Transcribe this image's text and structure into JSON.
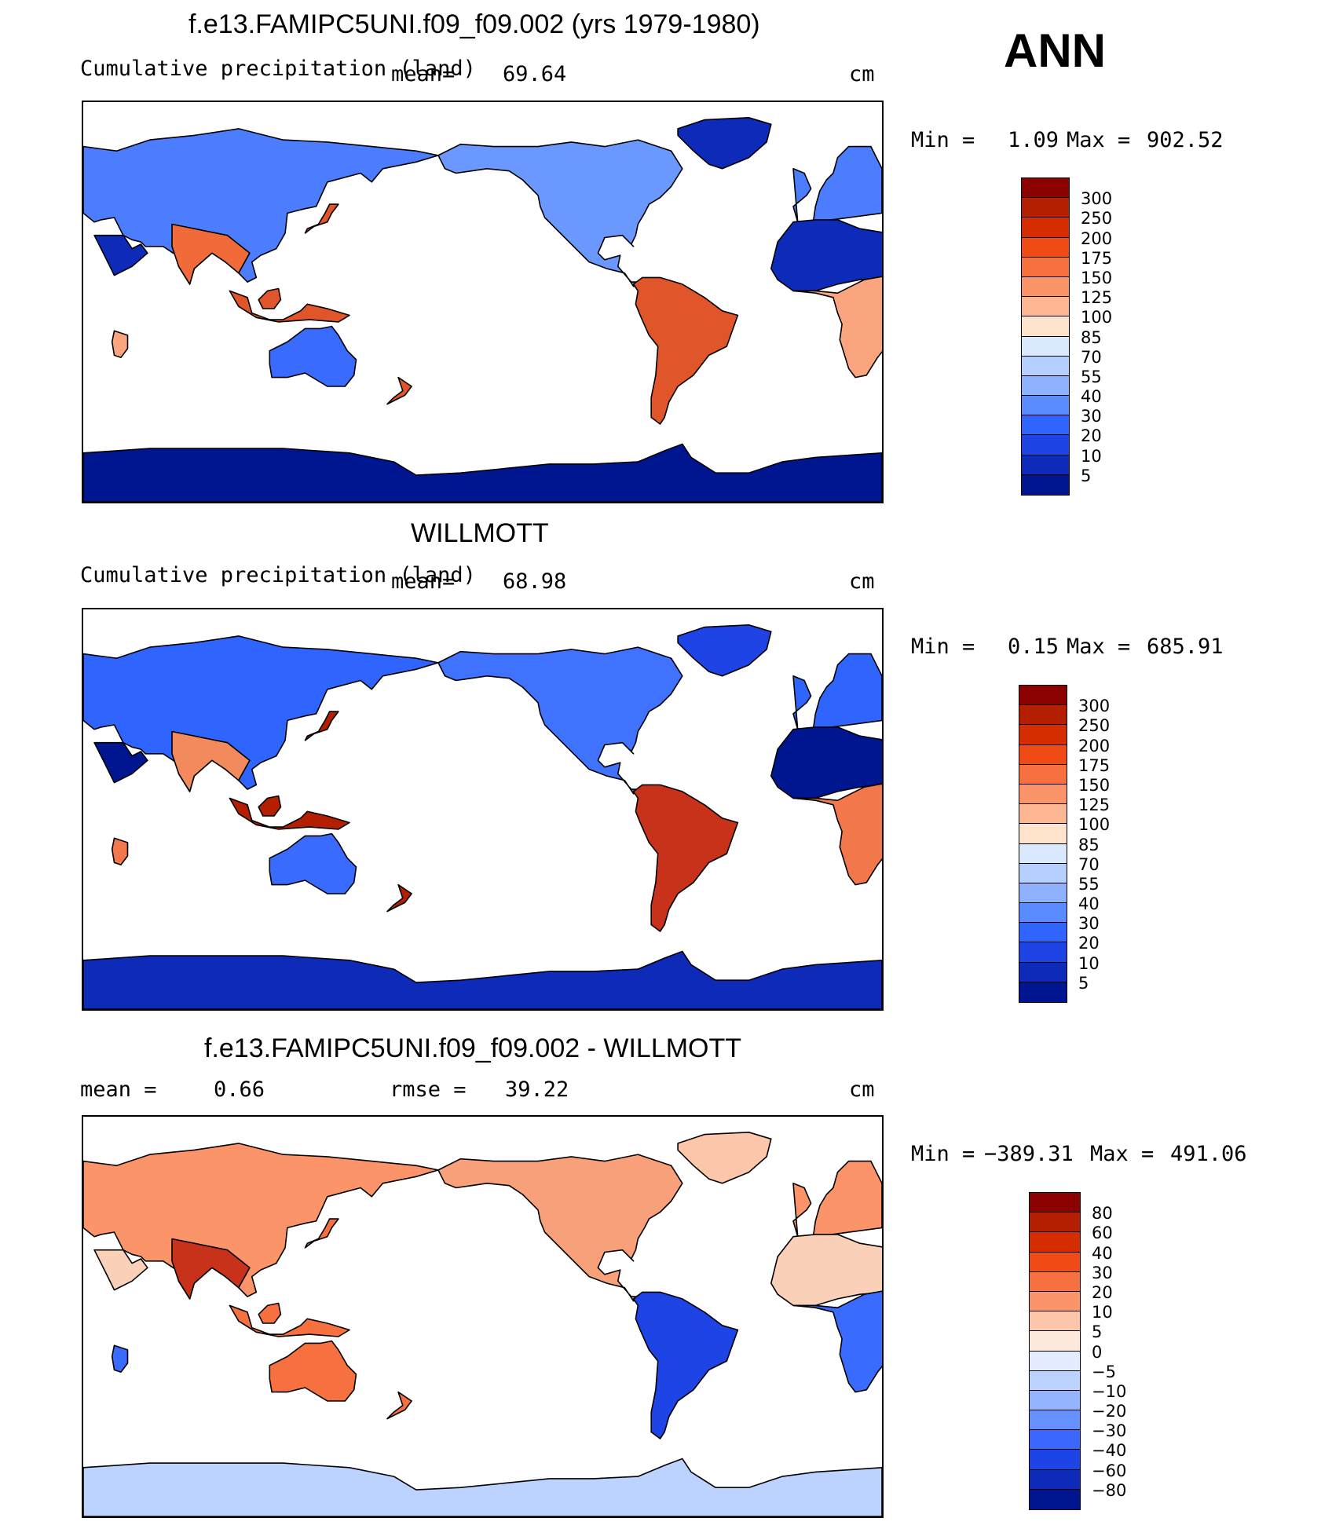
{
  "season": "ANN",
  "panels": [
    {
      "title": "f.e13.FAMIPC5UNI.f09_f09.002 (yrs 1979-1980)",
      "left_text": "Cumulative precipitation (land)",
      "mean_label": "mean=",
      "mean_value": "69.64",
      "units": "cm",
      "min_label": "Min  =",
      "min_value": "1.09",
      "max_label": "Max  =",
      "max_value": "902.52",
      "levels": [
        "300",
        "250",
        "200",
        "175",
        "150",
        "125",
        "100",
        "85",
        "70",
        "55",
        "40",
        "30",
        "20",
        "10",
        "5"
      ],
      "colors": [
        "#8b0000",
        "#b31f00",
        "#d62d00",
        "#f04a15",
        "#f77040",
        "#fb9468",
        "#fcb692",
        "#fde3cc",
        "#dbe9ff",
        "#b5cfff",
        "#8fb2ff",
        "#5b8cff",
        "#2f64ff",
        "#1e44e6",
        "#0d2ab8",
        "#001590"
      ]
    },
    {
      "title": "WILLMOTT",
      "left_text": "Cumulative precipitation (land)",
      "mean_label": "mean=",
      "mean_value": "68.98",
      "units": "cm",
      "min_label": "Min  =",
      "min_value": "0.15",
      "max_label": "Max  =",
      "max_value": "685.91",
      "levels": [
        "300",
        "250",
        "200",
        "175",
        "150",
        "125",
        "100",
        "85",
        "70",
        "55",
        "40",
        "30",
        "20",
        "10",
        "5"
      ],
      "colors": [
        "#8b0000",
        "#b31f00",
        "#d62d00",
        "#f04a15",
        "#f77040",
        "#fb9468",
        "#fcb692",
        "#fde3cc",
        "#dbe9ff",
        "#b5cfff",
        "#8fb2ff",
        "#5b8cff",
        "#2f64ff",
        "#1e44e6",
        "#0d2ab8",
        "#001590"
      ]
    },
    {
      "title": "f.e13.FAMIPC5UNI.f09_f09.002 - WILLMOTT",
      "left_text": "mean =",
      "mean_label": "",
      "mean_value": "0.66",
      "rmse_label": "rmse  =",
      "rmse_value": "39.22",
      "units": "cm",
      "min_label": "Min  =",
      "min_value": "−389.31",
      "max_label": "Max  =",
      "max_value": "491.06",
      "levels": [
        "80",
        "60",
        "40",
        "30",
        "20",
        "10",
        "5",
        "0",
        "−5",
        "−10",
        "−20",
        "−30",
        "−40",
        "−60",
        "−80"
      ],
      "colors": [
        "#8b0000",
        "#b31f00",
        "#d62d00",
        "#f04a15",
        "#f77040",
        "#fb9468",
        "#fcc6aa",
        "#fde9dc",
        "#e4edff",
        "#bcd2ff",
        "#94b4ff",
        "#6690ff",
        "#3a68ff",
        "#1d44e6",
        "#0d2ab8",
        "#001590"
      ]
    }
  ],
  "regions": {
    "panel1": {
      "eurasia": "#4d7dff",
      "north_america": "#6b98ff",
      "south_america": "#e0552a",
      "africa_north": "#0d2ab8",
      "africa_south": "#fba57f",
      "australia": "#3a6bff",
      "greenland": "#0d2ab8",
      "antarctica": "#001590",
      "south_asia": "#f06a3a",
      "maritime": "#e0552a"
    },
    "panel2": {
      "eurasia": "#2f64ff",
      "north_america": "#3f72ff",
      "south_america": "#c8321a",
      "africa_north": "#001590",
      "africa_south": "#f2774a",
      "australia": "#3a6bff",
      "greenland": "#1e44e6",
      "antarctica": "#0d2ab8",
      "south_asia": "#f28a5e",
      "maritime": "#b31f00"
    },
    "panel3": {
      "eurasia": "#fb9468",
      "north_america": "#f7a07a",
      "south_america": "#1e44e6",
      "africa_north": "#fbd0b8",
      "africa_south": "#3a6bff",
      "australia": "#f77040",
      "greenland": "#fcc6aa",
      "antarctica": "#bcd2ff",
      "south_asia": "#c8321a",
      "maritime": "#f77040"
    }
  }
}
